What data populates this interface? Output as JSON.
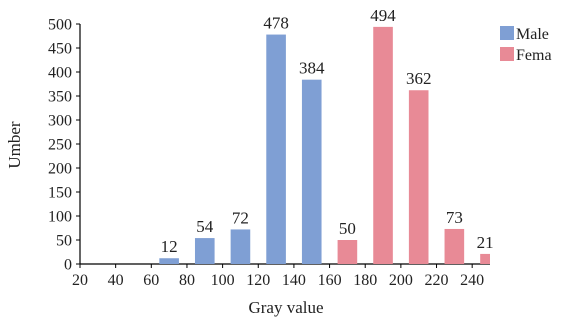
{
  "chart_data": {
    "type": "bar",
    "xlabel": "Gray value",
    "ylabel": "Umber",
    "xlim": [
      20,
      250
    ],
    "ylim": [
      0,
      500
    ],
    "x_ticks": [
      "20",
      "40",
      "60",
      "80",
      "100",
      "120",
      "140",
      "160",
      "180",
      "200",
      "220",
      "240"
    ],
    "y_ticks": [
      "0",
      "50",
      "100",
      "150",
      "200",
      "250",
      "300",
      "350",
      "400",
      "450",
      "500"
    ],
    "legend_position": "top-right",
    "series": [
      {
        "name": "Male",
        "color": "#7f9fd4",
        "bars": [
          {
            "x": 70,
            "value": 12
          },
          {
            "x": 90,
            "value": 54
          },
          {
            "x": 110,
            "value": 72
          },
          {
            "x": 130,
            "value": 478
          },
          {
            "x": 150,
            "value": 384
          }
        ]
      },
      {
        "name": "Fema",
        "color": "#e88a96",
        "bars": [
          {
            "x": 170,
            "value": 50
          },
          {
            "x": 190,
            "value": 494
          },
          {
            "x": 210,
            "value": 362
          },
          {
            "x": 230,
            "value": 73
          },
          {
            "x": 250,
            "value": 21
          }
        ]
      }
    ],
    "data_labels": [
      "12",
      "54",
      "72",
      "478",
      "384",
      "50",
      "494",
      "362",
      "73",
      "21"
    ]
  }
}
